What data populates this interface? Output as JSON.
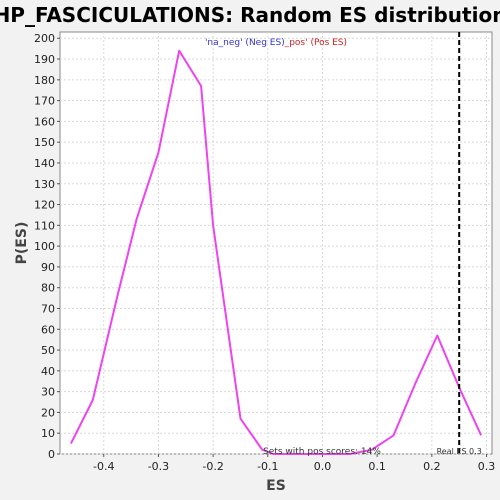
{
  "chart_data": {
    "type": "line",
    "title": "HP_FASCICULATIONS: Random ES distribution",
    "xlabel": "ES",
    "ylabel": "P(ES)",
    "xlim": [
      -0.48,
      0.31
    ],
    "ylim": [
      0,
      203
    ],
    "x_ticks": [
      -0.4,
      -0.3,
      -0.2,
      -0.1,
      0.0,
      0.1,
      0.2,
      0.3
    ],
    "x_tick_labels": [
      "-0.4",
      "-0.3",
      "-0.2",
      "-0.1",
      "0.0",
      "0.1",
      "0.2",
      "0.3"
    ],
    "y_ticks": [
      0,
      10,
      20,
      30,
      40,
      50,
      60,
      70,
      80,
      90,
      100,
      110,
      120,
      130,
      140,
      150,
      160,
      170,
      180,
      190,
      200
    ],
    "grid": true,
    "series": [
      {
        "color": "#ee44ee",
        "x": [
          -0.46,
          -0.42,
          -0.375,
          -0.34,
          -0.3,
          -0.262,
          -0.222,
          -0.2,
          -0.15,
          -0.11,
          -0.09,
          0.05,
          0.09,
          0.13,
          0.17,
          0.21,
          0.25,
          0.29
        ],
        "y": [
          5,
          26,
          76,
          113,
          145,
          194,
          177,
          110,
          17,
          2,
          0,
          0,
          2,
          9,
          34,
          57,
          32,
          9
        ]
      }
    ],
    "legend": {
      "placement": "top-center",
      "neg_label": "'na_neg' (Neg ES)",
      "neg_color": "#3333cc",
      "pos_label": "_pos' (Pos ES)",
      "pos_color": "#cc2222"
    },
    "real_es": {
      "x": 0.25,
      "label": "Real ES 0.3"
    },
    "annotation": "Sets with pos scores: 14%"
  },
  "colors": {
    "background": "#f2f2f2",
    "plot_background": "#ffffff",
    "grid": "#d8d8d8"
  }
}
